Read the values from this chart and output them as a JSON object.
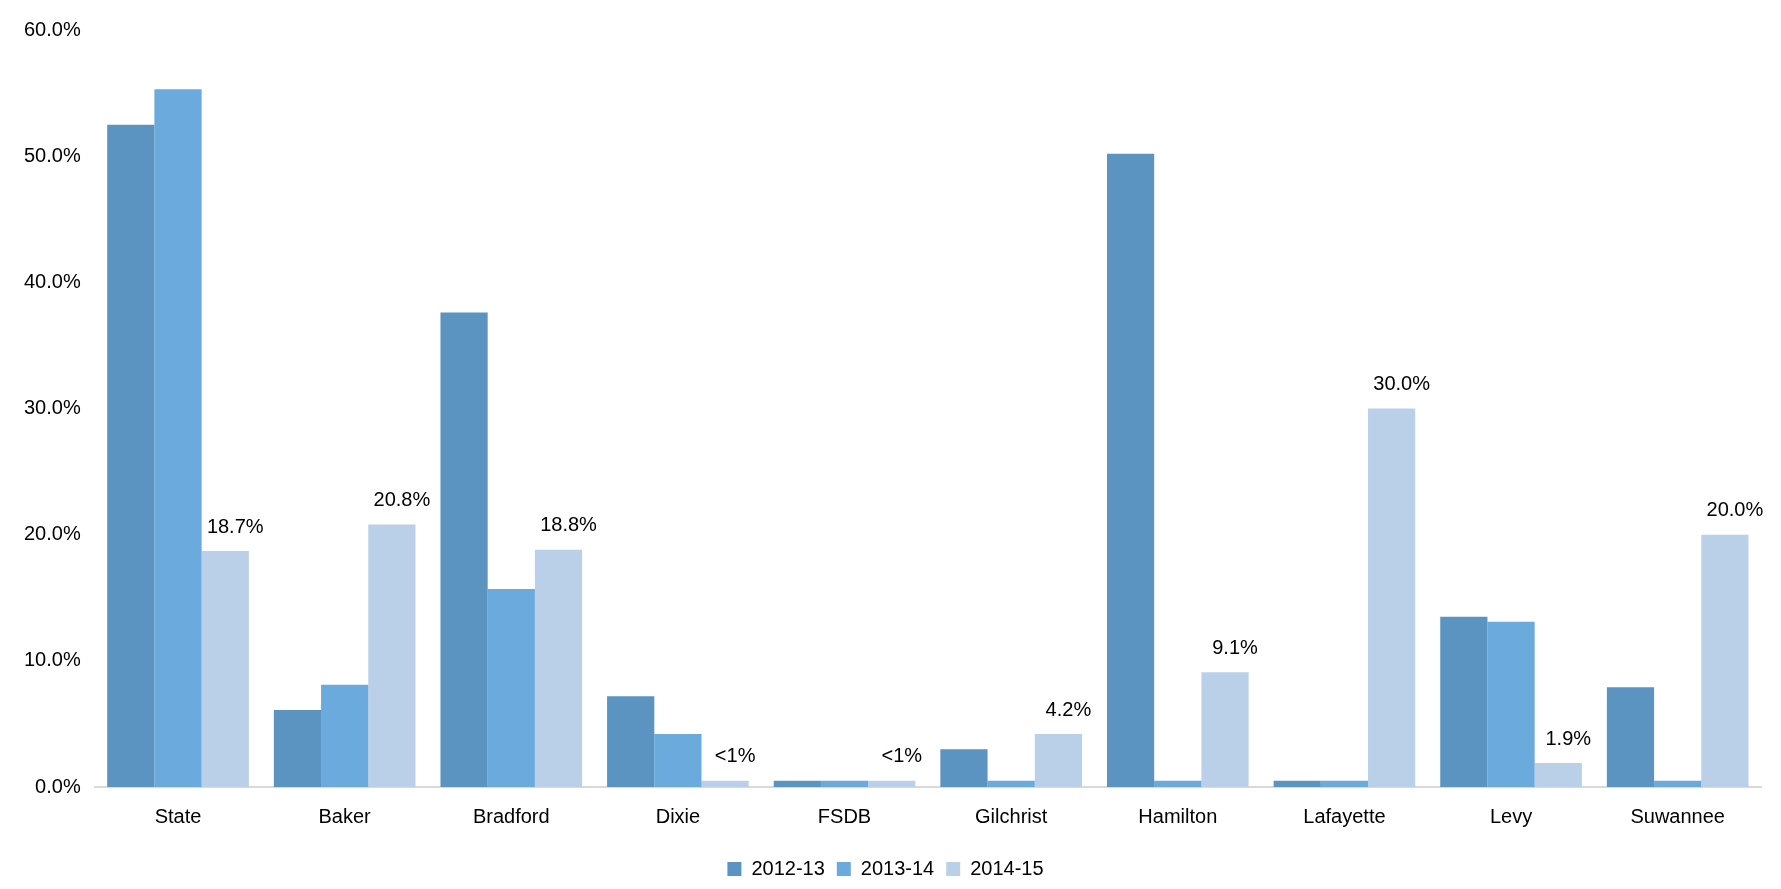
{
  "chart_data": {
    "type": "bar",
    "categories": [
      "State",
      "Baker",
      "Bradford",
      "Dixie",
      "FSDB",
      "Gilchrist",
      "Hamilton",
      "Lafayette",
      "Levy",
      "Suwannee"
    ],
    "series": [
      {
        "name": "2012-13",
        "color": "#5b93c1",
        "values": [
          52.5,
          6.1,
          37.6,
          7.2,
          0.5,
          3.0,
          50.2,
          0.5,
          13.5,
          7.9
        ]
      },
      {
        "name": "2013-14",
        "color": "#6aaadc",
        "values": [
          55.3,
          8.1,
          15.7,
          4.2,
          0.5,
          0.5,
          0.5,
          0.5,
          13.1,
          0.5
        ]
      },
      {
        "name": "2014-15",
        "color": "#bad0e8",
        "values": [
          18.7,
          20.8,
          18.8,
          0.5,
          0.5,
          4.2,
          9.1,
          30.0,
          1.9,
          20.0
        ],
        "value_labels": [
          "18.7%",
          "20.8%",
          "18.8%",
          "<1%",
          "<1%",
          "4.2%",
          "9.1%",
          "30.0%",
          "1.9%",
          "20.0%"
        ]
      }
    ],
    "ylim": [
      0,
      60
    ],
    "yticks": [
      {
        "value": 0,
        "label": "0.0%"
      },
      {
        "value": 10,
        "label": "10.0%"
      },
      {
        "value": 20,
        "label": "20.0%"
      },
      {
        "value": 30,
        "label": "30.0%"
      },
      {
        "value": 40,
        "label": "40.0%"
      },
      {
        "value": 50,
        "label": "50.0%"
      },
      {
        "value": 60,
        "label": "60.0%"
      }
    ],
    "grid": false,
    "legend": "bottom"
  }
}
